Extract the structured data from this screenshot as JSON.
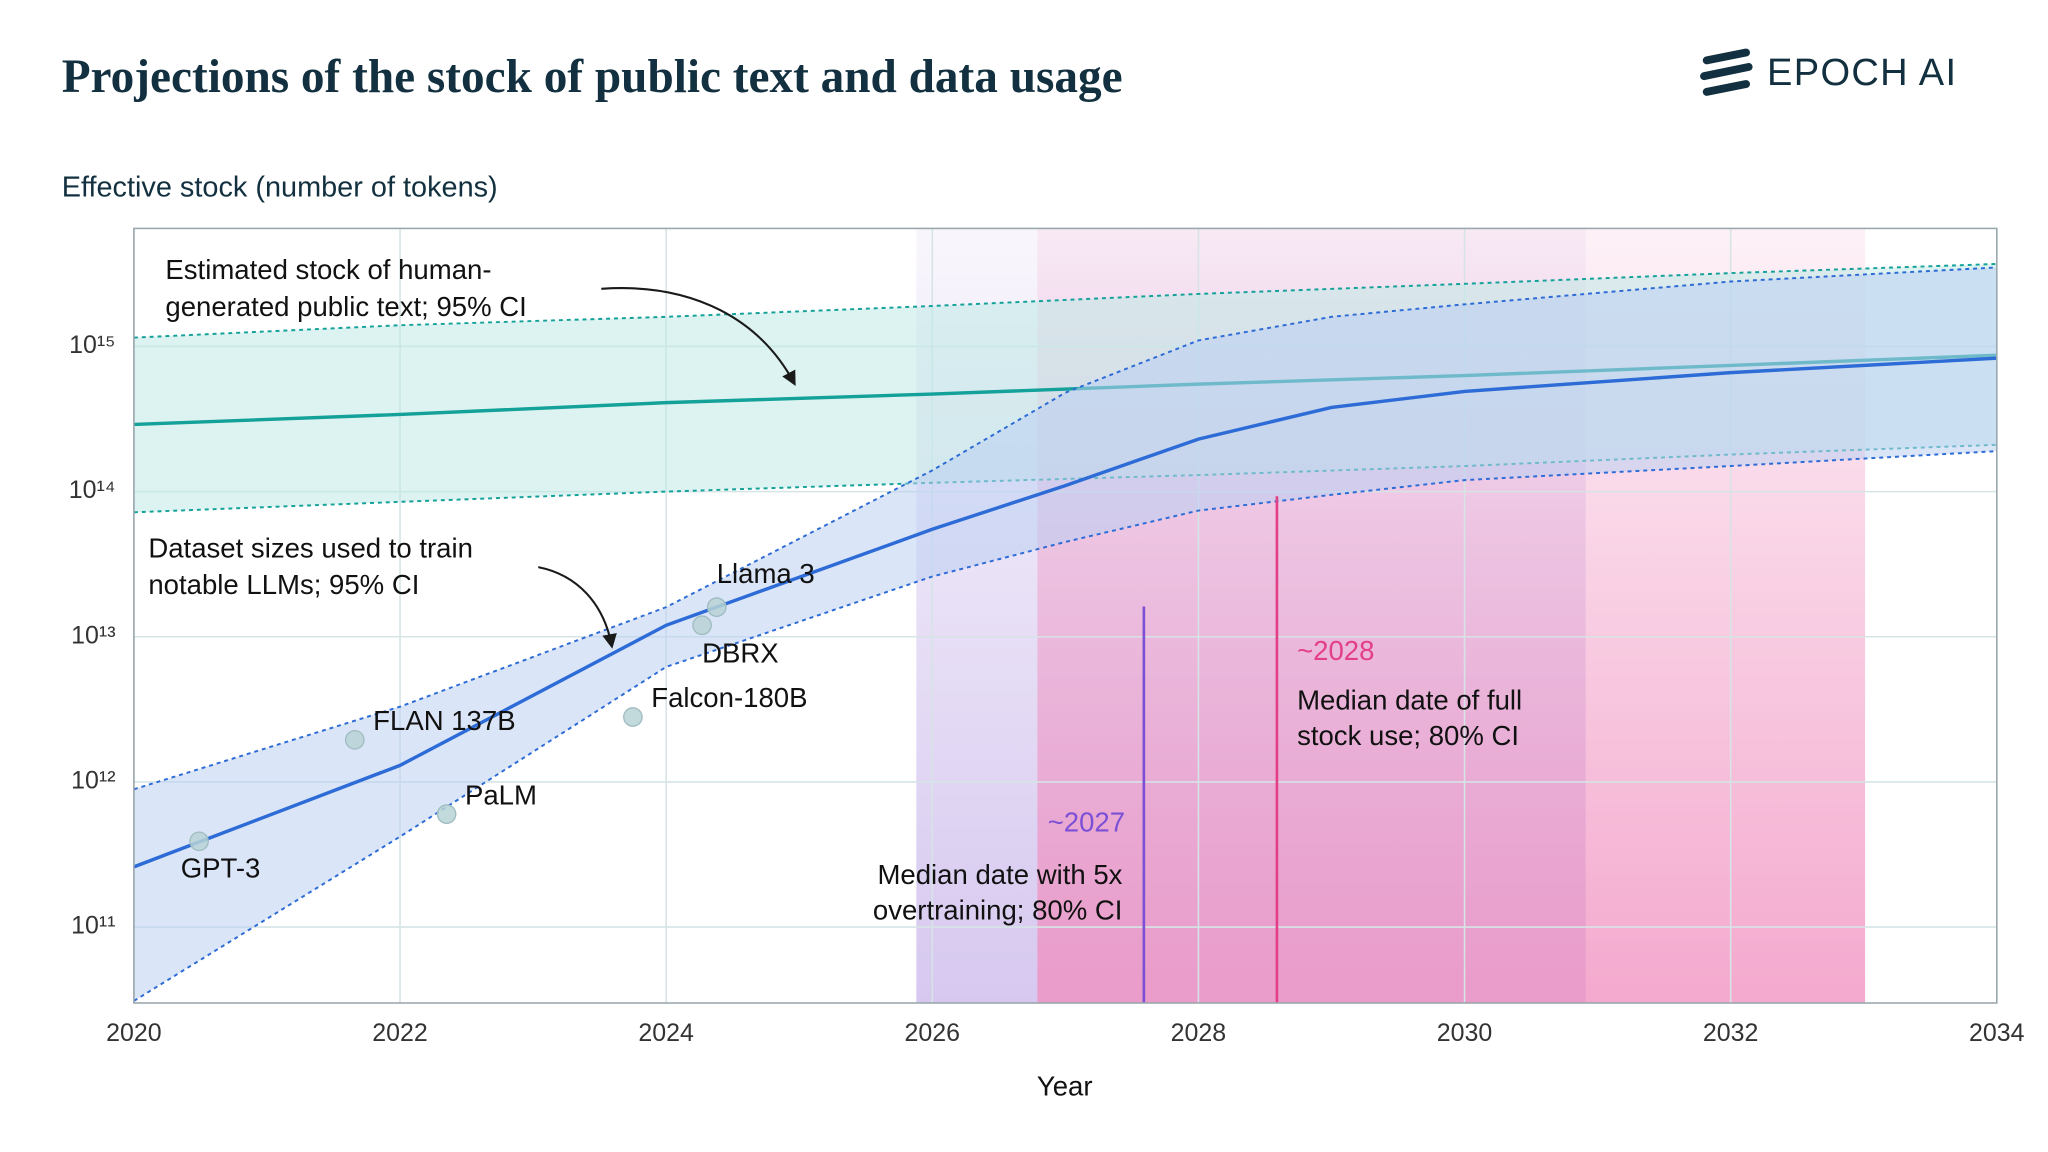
{
  "chart_data": {
    "type": "line",
    "title": "Projections of the stock of public text and data usage",
    "brand": "EPOCH AI",
    "ylabel": "Effective stock (number of tokens)",
    "xlabel": "Year",
    "log_y": true,
    "grid": true,
    "xlim": [
      2020,
      2034
    ],
    "xticks": [
      2020,
      2022,
      2024,
      2026,
      2028,
      2030,
      2032,
      2034
    ],
    "ylim": [
      30000000000,
      6500000000000000
    ],
    "yticks": [
      {
        "value": 100000000000,
        "label": "10¹¹"
      },
      {
        "value": 1000000000000,
        "label": "10¹²"
      },
      {
        "value": 10000000000000,
        "label": "10¹³"
      },
      {
        "value": 100000000000000,
        "label": "10¹⁴"
      },
      {
        "value": 1000000000000000,
        "label": "10¹⁵"
      }
    ],
    "series": [
      {
        "label": [
          "Estimated stock of human-",
          "generated public text; 95% CI"
        ],
        "color": "#13a199",
        "band_color": "#bfe9e5",
        "x": [
          2020,
          2022,
          2024,
          2026,
          2028,
          2030,
          2032,
          2034
        ],
        "values": [
          290000000000000,
          340000000000000,
          410000000000000,
          470000000000000,
          550000000000000,
          630000000000000,
          740000000000000,
          870000000000000
        ],
        "lower": [
          72000000000000,
          85000000000000,
          100000000000000,
          115000000000000,
          130000000000000,
          150000000000000,
          180000000000000,
          210000000000000
        ],
        "upper": [
          1150000000000000,
          1400000000000000,
          1600000000000000,
          1900000000000000,
          2300000000000000,
          2700000000000000,
          3200000000000000,
          3700000000000000
        ]
      },
      {
        "label": [
          "Dataset sizes used to train",
          "notable LLMs; 95% CI"
        ],
        "color": "#2d6bd6",
        "band_color": "#bcd0f2",
        "x": [
          2020,
          2022,
          2024,
          2026,
          2027,
          2028,
          2029,
          2030,
          2032,
          2034
        ],
        "values": [
          260000000000,
          1300000000000,
          12000000000000,
          55000000000000,
          110000000000000,
          230000000000000,
          380000000000000,
          490000000000000,
          660000000000000,
          830000000000000
        ],
        "lower": [
          31000000000,
          420000000000,
          6200000000000,
          26000000000000,
          45000000000000,
          74000000000000,
          95000000000000,
          120000000000000,
          150000000000000,
          190000000000000
        ],
        "upper": [
          890000000000,
          3300000000000,
          16000000000000,
          140000000000000,
          480000000000000,
          1100000000000000,
          1600000000000000,
          1950000000000000,
          2800000000000000,
          3500000000000000
        ]
      }
    ],
    "points": {
      "labels": [
        "GPT-3",
        "FLAN 137B",
        "PaLM",
        "Falcon-180B",
        "DBRX",
        "Llama 3"
      ],
      "x": [
        2020.49,
        2021.66,
        2022.35,
        2023.75,
        2024.27,
        2024.38
      ],
      "values": [
        390000000000,
        1950000000000,
        600000000000,
        2800000000000,
        12000000000000,
        16000000000000
      ],
      "color": "#b9d3d6"
    },
    "date_estimates": [
      {
        "label": "~2027",
        "text": [
          "Median date with 5x",
          "overtraining; 80% CI"
        ],
        "median": 2027.59,
        "ci": [
          2025.88,
          2030.91
        ],
        "color": "#7b4fd6",
        "fill": "#c9b6ea"
      },
      {
        "label": "~2028",
        "text": [
          "Median date of full",
          "stock use; 80% CI"
        ],
        "median": 2028.59,
        "ci": [
          2026.79,
          2033.01
        ],
        "color": "#e33f86",
        "fill": "#f08cbd"
      }
    ]
  }
}
